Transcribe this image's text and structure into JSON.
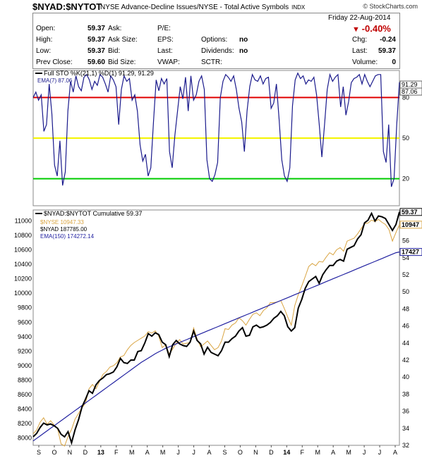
{
  "header": {
    "symbol": "$NYAD:$NYTOT",
    "description": "NYSE Advance-Decline Issues/NYSE - Total Active Symbols",
    "exchange": "INDX",
    "logo": "© StockCharts.com",
    "date": "Friday   22-Aug-2014"
  },
  "quote": {
    "open_label": "Open:",
    "open": "59.37",
    "high_label": "High:",
    "high": "59.37",
    "low_label": "Low:",
    "low": "59.37",
    "prev_label": "Prev Close:",
    "prev": "59.60",
    "ask_label": "Ask:",
    "asksize_label": "Ask Size:",
    "bid_label": "Bid:",
    "bidsize_label": "Bid Size:",
    "pe_label": "P/E:",
    "eps_label": "EPS:",
    "last_label": "Last:",
    "vwap_label": "VWAP:",
    "options_label": "Options:",
    "options": "no",
    "dividends_label": "Dividends:",
    "dividends": "no",
    "sctr_label": "SCTR:",
    "change_pct": "-0.40%",
    "chg_label": "Chg:",
    "chg": "-0.24",
    "last2_label": "Last:",
    "last2": "59.37",
    "volume_label": "Volume:",
    "volume": "0"
  },
  "colors": {
    "sto": "#1a1a8c",
    "red": "#e00000",
    "yellow": "#f4f400",
    "green": "#00cc00",
    "black": "#000000",
    "gold": "#d9a441",
    "blue": "#2020a0",
    "down": "#c00000"
  },
  "chart_data": [
    {
      "type": "line",
      "panel": "Full Stochastic",
      "legend": [
        "Full STO %K(21,1) %D(1) 91.29, 91.29",
        "EMA(7) 87.06"
      ],
      "y_ticks": [
        20,
        50,
        80
      ],
      "ylim": [
        0,
        100
      ],
      "reference_lines": [
        {
          "value": 80,
          "color": "red"
        },
        {
          "value": 50,
          "color": "yellow"
        },
        {
          "value": 20,
          "color": "green"
        }
      ],
      "value_tags": [
        "91.29",
        "87.06"
      ],
      "series": [
        {
          "name": "Full STO %K(21,1) %D(1)",
          "values": [
            80,
            84,
            78,
            82,
            55,
            60,
            90,
            68,
            30,
            22,
            48,
            15,
            25,
            70,
            92,
            84,
            96,
            88,
            85,
            95,
            97,
            93,
            86,
            92,
            89,
            97,
            95,
            90,
            84,
            96,
            93,
            88,
            60,
            86,
            96,
            92,
            94,
            78,
            82,
            70,
            45,
            33,
            38,
            22,
            28,
            62,
            93,
            85,
            94,
            90,
            94,
            40,
            28,
            52,
            70,
            88,
            79,
            95,
            70,
            96,
            78,
            82,
            92,
            96,
            86,
            34,
            20,
            18,
            23,
            32,
            80,
            92,
            97,
            95,
            92,
            96,
            86,
            72,
            62,
            40,
            70,
            88,
            97,
            93,
            92,
            96,
            90,
            94,
            95,
            72,
            76,
            90,
            64,
            34,
            22,
            18,
            28,
            74,
            93,
            98,
            94,
            96,
            90,
            93,
            92,
            95,
            82,
            60,
            36,
            60,
            86,
            97,
            92,
            95,
            97,
            73,
            88,
            67,
            77,
            91,
            94,
            95,
            97,
            90,
            97,
            92,
            88,
            92,
            96,
            97,
            97,
            40,
            32,
            60,
            14,
            20,
            60,
            91.29
          ]
        }
      ]
    },
    {
      "type": "line",
      "panel": "Cumulative",
      "legend": [
        "$NYAD:$NYTOT Cumulative 59.37",
        "$NYSE 10947.33",
        "$NYAD 187785.00",
        "EMA(150) 174272.14"
      ],
      "x_ticks": [
        "S",
        "O",
        "N",
        "D",
        "13",
        "F",
        "M",
        "A",
        "M",
        "J",
        "J",
        "A",
        "S",
        "O",
        "N",
        "D",
        "14",
        "F",
        "M",
        "A",
        "M",
        "J",
        "J",
        "A"
      ],
      "left_ticks": [
        8000,
        8200,
        8400,
        8600,
        8800,
        9000,
        9200,
        9400,
        9600,
        9800,
        10000,
        10200,
        10400,
        10600,
        10800,
        11000
      ],
      "right_ticks": [
        32,
        34,
        36,
        38,
        40,
        42,
        44,
        46,
        48,
        50,
        52,
        54,
        56,
        58
      ],
      "value_tags": [
        "59.37",
        "10947",
        "17427"
      ],
      "series": [
        {
          "name": "$NYAD:$NYTOT Cumulative",
          "values": [
            33.0,
            33.4,
            34.1,
            34.6,
            34.4,
            34.5,
            34.3,
            34.0,
            33.3,
            33.0,
            33.6,
            32.3,
            33.8,
            35.0,
            36.5,
            37.4,
            38.4,
            38.1,
            39.1,
            39.6,
            39.9,
            40.3,
            40.4,
            40.6,
            41.2,
            42.2,
            41.7,
            41.6,
            42.0,
            42.0,
            43.0,
            43.1,
            44.0,
            45.1,
            44.8,
            45.2,
            45.0,
            44.1,
            43.8,
            42.4,
            43.8,
            44.3,
            43.9,
            43.7,
            43.6,
            44.1,
            45.4,
            44.3,
            43.9,
            42.7,
            43.5,
            42.9,
            42.7,
            42.5,
            43.1,
            44.1,
            44.1,
            44.5,
            44.8,
            45.4,
            45.8,
            44.8,
            44.9,
            45.9,
            46.1,
            45.8,
            45.9,
            46.1,
            46.4,
            46.9,
            47.2,
            47.7,
            47.2,
            45.9,
            45.4,
            45.8,
            48.1,
            49.1,
            50.4,
            51.2,
            51.5,
            51.8,
            51.0,
            52.0,
            52.6,
            53.1,
            53.1,
            53.6,
            53.8,
            53.6,
            55.0,
            55.2,
            55.4,
            56.2,
            56.7,
            58.1,
            58.4,
            59.2,
            58.3,
            58.9,
            58.8,
            58.6,
            57.9,
            57.2,
            57.9,
            59.37
          ]
        },
        {
          "name": "$NYSE",
          "values": [
            8060,
            8110,
            8220,
            8280,
            8190,
            8240,
            8180,
            8130,
            7920,
            7890,
            8020,
            8120,
            8260,
            8340,
            8420,
            8480,
            8680,
            8740,
            8680,
            8780,
            8880,
            8920,
            8980,
            9000,
            9040,
            9120,
            9140,
            9220,
            9280,
            9320,
            9350,
            9380,
            9410,
            9470,
            9450,
            9480,
            9410,
            9250,
            9290,
            9160,
            9230,
            9310,
            9360,
            9300,
            9310,
            9320,
            9520,
            9370,
            9260,
            9300,
            9340,
            9280,
            9220,
            9250,
            9340,
            9510,
            9500,
            9560,
            9590,
            9660,
            9620,
            9560,
            9640,
            9710,
            9730,
            9690,
            9760,
            9800,
            9870,
            9870,
            9880,
            9900,
            9790,
            9670,
            9560,
            9830,
            9980,
            10100,
            10230,
            10370,
            10410,
            10380,
            10440,
            10430,
            10500,
            10560,
            10530,
            10600,
            10630,
            10580,
            10720,
            10740,
            10760,
            10820,
            10890,
            10960,
            10970,
            11010,
            10990,
            11020,
            10980,
            10950,
            10880,
            10720,
            10840,
            10947
          ]
        },
        {
          "name": "$NYAD",
          "values": [
            7960,
            7995,
            8030,
            8065,
            8100,
            8135,
            8170,
            8205,
            8240,
            8275,
            8310,
            8345,
            8380,
            8415,
            8450,
            8485,
            8520,
            8555,
            8590,
            8625,
            8660,
            8695,
            8730,
            8765,
            8800,
            8835,
            8870,
            8905,
            8940,
            8975,
            9010,
            9045,
            9075,
            9105,
            9135,
            9165,
            9190,
            9215,
            9240,
            9260,
            9280,
            9300,
            9320,
            9340,
            9360,
            9380,
            9400,
            9420,
            9440,
            9460,
            9480,
            9500,
            9520,
            9540,
            9560,
            9580,
            9600,
            9620,
            9640,
            9660,
            9680,
            9700,
            9720,
            9740,
            9760,
            9780,
            9800,
            9820,
            9840,
            9860,
            9880,
            9900,
            9920,
            9940,
            9960,
            9980,
            10000,
            10020,
            10040,
            10060,
            10080,
            10100,
            10120,
            10140,
            10160,
            10180,
            10200,
            10220,
            10240,
            10260,
            10280,
            10300,
            10320,
            10340,
            10360,
            10380,
            10400,
            10420,
            10440,
            10460,
            10480,
            10500,
            10520,
            10540,
            10560,
            10570
          ]
        }
      ]
    }
  ]
}
